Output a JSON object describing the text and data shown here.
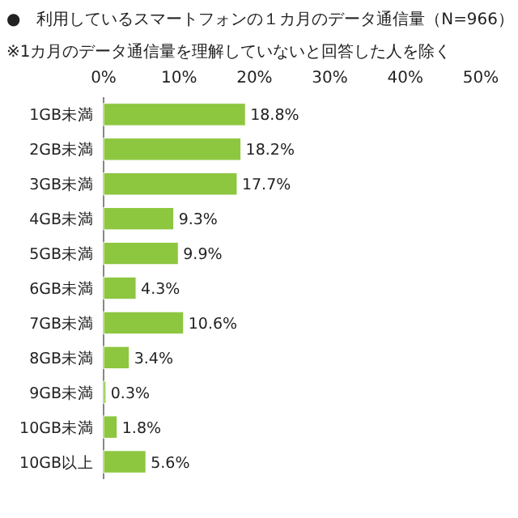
{
  "chart_data": {
    "type": "bar",
    "orientation": "horizontal",
    "title": "●　利用しているスマートフォンの１カ月のデータ通信量（N=966）",
    "subtitle": "※1カ月のデータ通信量を理解していないと回答した人を除く",
    "categories": [
      "1GB未満",
      "2GB未満",
      "3GB未満",
      "4GB未満",
      "5GB未満",
      "6GB未満",
      "7GB未満",
      "8GB未満",
      "9GB未満",
      "10GB未満",
      "10GB以上"
    ],
    "values": [
      18.8,
      18.2,
      17.7,
      9.3,
      9.9,
      4.3,
      10.6,
      3.4,
      0.3,
      1.8,
      5.6
    ],
    "value_labels": [
      "18.8%",
      "18.2%",
      "17.7%",
      "9.3%",
      "9.9%",
      "4.3%",
      "10.6%",
      "3.4%",
      "0.3%",
      "1.8%",
      "5.6%"
    ],
    "color": "#8dc63f",
    "xlim": [
      0,
      50
    ],
    "xticks": [
      {
        "value": 0,
        "label": "0%"
      },
      {
        "value": 10,
        "label": "10%"
      },
      {
        "value": 20,
        "label": "20%"
      },
      {
        "value": 30,
        "label": "30%"
      },
      {
        "value": 40,
        "label": "40%"
      },
      {
        "value": 50,
        "label": "50%"
      }
    ]
  }
}
